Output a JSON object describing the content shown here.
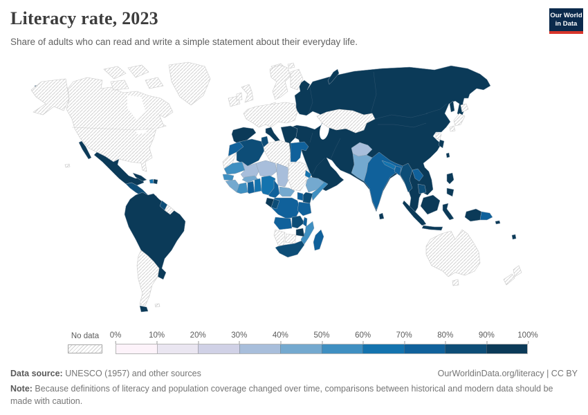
{
  "header": {
    "title": "Literacy rate, 2023",
    "subtitle": "Share of adults who can read and write a simple statement about their everyday life.",
    "logo": {
      "line1": "Our World",
      "line2": "in Data"
    }
  },
  "footer": {
    "source_label": "Data source:",
    "source_text": " UNESCO (1957) and other sources",
    "link_text": "OurWorldinData.org/literacy | CC BY",
    "note_label": "Note:",
    "note_text": " Because definitions of literacy and population coverage changed over time, comparisons between historical and modern data should be made with caution."
  },
  "chart_data": {
    "type": "choropleth-map",
    "title": "Literacy rate, 2023",
    "unit": "%",
    "projection": "world",
    "legend": {
      "no_data_label": "No data",
      "tick_labels": [
        "0%",
        "10%",
        "20%",
        "30%",
        "40%",
        "50%",
        "60%",
        "70%",
        "80%",
        "90%",
        "100%"
      ],
      "bucket_order": [
        "0-10",
        "10-20",
        "20-30",
        "30-40",
        "40-50",
        "50-60",
        "60-70",
        "70-80",
        "80-90",
        "90-100"
      ],
      "position": "bottom"
    },
    "palette": {
      "0-10": "#fdf3fa",
      "10-20": "#eae6f1",
      "20-30": "#d0d1e6",
      "30-40": "#a8bedb",
      "40-50": "#74a9cf",
      "50-60": "#3f8fc1",
      "60-70": "#1473ae",
      "70-80": "#10619b",
      "80-90": "#0d4d77",
      "90-100": "#0b3a58",
      "no-data-stripe": "#d2d2d2"
    },
    "regions": {
      "canada-united-states": "no-data",
      "greenland": "no-data",
      "iceland": "no-data",
      "hawaii": "no-data",
      "chukotka-west": "90-100",
      "mexico": "90-100",
      "central-america": "80-90",
      "cuba": "90-100",
      "haiti": "60-70",
      "dominican-republic": "90-100",
      "trinidad-tobago": "90-100",
      "south-america-core": "90-100",
      "guyana": "80-90",
      "suriname-french-guiana": "no-data",
      "argentina-chile": "no-data",
      "tierra-del-fuego": "90-100",
      "falkland-islands": "no-data",
      "united-kingdom": "no-data",
      "ireland": "no-data",
      "scandinavia": "no-data",
      "finland": "no-data",
      "denmark": "no-data",
      "svalbard": "no-data",
      "western-central-europe": "no-data",
      "spain-portugal": "90-100",
      "italy": "90-100",
      "balkans-greece": "90-100",
      "eurasia-block": "90-100",
      "novaya-zemlya": "90-100",
      "sakhalin": "90-100",
      "kazakhstan": "no-data",
      "afghanistan": "30-40",
      "pakistan": "40-50",
      "india": "70-80",
      "nepal": "60-70",
      "bangladesh": "70-80",
      "sri-lanka": "90-100",
      "myanmar": "80-90",
      "laos": "70-80",
      "cambodia": "80-90",
      "north-korea": "no-data",
      "south-korea": "90-100",
      "japan": "no-data",
      "taiwan": "90-100",
      "philippines": "90-100",
      "malaysia-borneo": "90-100",
      "indonesia-sumatra": "90-100",
      "indonesia-java": "90-100",
      "indonesia-sulawesi": "90-100",
      "indonesia-west-papua": "90-100",
      "papua-new-guinea": "70-80",
      "melanesia": "90-100",
      "australia": "no-data",
      "tasmania": "no-data",
      "new-zealand": "no-data",
      "morocco": "70-80",
      "western-sahara": "no-data",
      "algeria": "80-90",
      "tunisia": "80-90",
      "libya": "no-data",
      "egypt": "70-80",
      "mauritania": "50-60",
      "mali": "30-40",
      "niger": "30-40",
      "chad": "30-40",
      "sudan-south-sudan": "no-data",
      "senegal-gambia": "50-60",
      "guinea-sierra-leone-liberia": "40-50",
      "cote-divoire": "50-60",
      "ghana": "70-80",
      "togo-benin": "60-70",
      "burkina-faso": "40-50",
      "nigeria": "60-70",
      "cameroon": "70-80",
      "central-african-republic": "40-50",
      "eritrea": "60-70",
      "ethiopia": "40-50",
      "somalia": "50-60",
      "kenya": "80-90",
      "uganda": "70-80",
      "dr-congo": "70-80",
      "gabon-equatorial-guinea": "90-100",
      "congo": "80-90",
      "tanzania": "70-80",
      "angola": "70-80",
      "zambia": "80-90",
      "malawi": "70-80",
      "mozambique": "50-60",
      "zimbabwe": "90-100",
      "botswana": "no-data",
      "namibia": "no-data",
      "south-africa": "80-90",
      "madagascar": "70-80"
    }
  }
}
